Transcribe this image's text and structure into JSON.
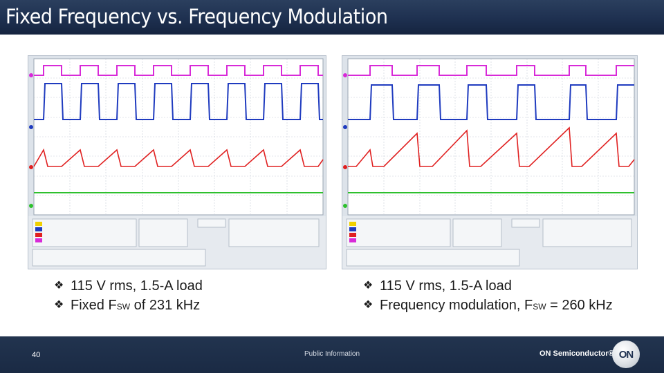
{
  "slide": {
    "title": "Fixed Frequency vs. Frequency Modulation",
    "page_number": "40",
    "classification": "Public Information",
    "brand": "ON Semiconductor®",
    "logo_text": "ON"
  },
  "left_panel": {
    "bullets": [
      {
        "text": "115 V rms, 1.5-A load"
      },
      {
        "text_before": "Fixed F",
        "subscript": "SW",
        "text_after": " of 231 kHz"
      }
    ]
  },
  "right_panel": {
    "bullets": [
      {
        "text": "115 V rms, 1.5-A load"
      },
      {
        "text_before": "Frequency modulation, F",
        "subscript": "SW",
        "text_after": " = 260 kHz"
      }
    ]
  },
  "colors": {
    "ch1": "#d82ad8",
    "ch2": "#1f3bbf",
    "ch3": "#e02020",
    "ch4": "#2ec02e",
    "title_bg": "#1e3050"
  }
}
